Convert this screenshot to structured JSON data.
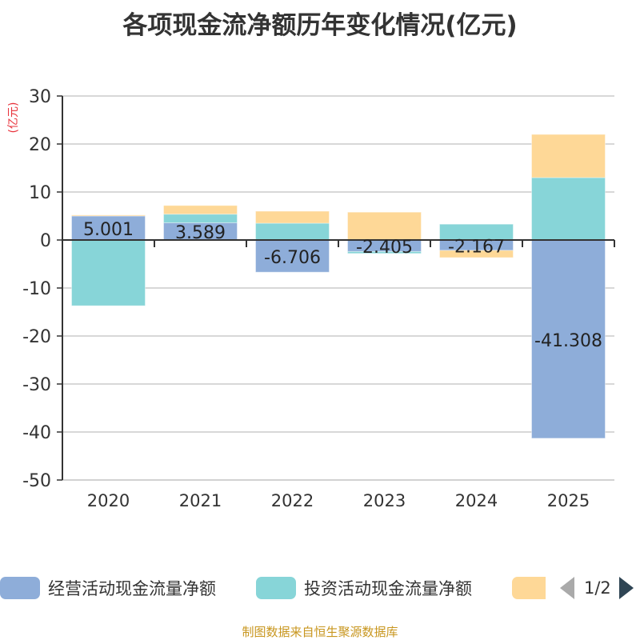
{
  "title": "各项现金流净额历年变化情况(亿元)",
  "source": "制图数据来自恒生聚源数据库",
  "legend": {
    "items": [
      {
        "label": "经营活动现金流量净额",
        "color": "#8eadd9"
      },
      {
        "label": "投资活动现金流量净额",
        "color": "#87d5d8"
      },
      {
        "label": "",
        "color": "#fed897"
      }
    ],
    "page": "1/2",
    "prev_icon": "triangle-left-icon",
    "next_icon": "triangle-right-icon"
  },
  "chart_data": {
    "type": "bar",
    "stacked": true,
    "title": "各项现金流净额历年变化情况(亿元)",
    "ylabel": "(亿元)",
    "xlabel": "",
    "ylim": [
      -50,
      30
    ],
    "yticks": [
      30,
      20,
      10,
      0,
      -10,
      -20,
      -30,
      -40,
      -50
    ],
    "grid": true,
    "legend_position": "bottom",
    "categories": [
      "2020",
      "2021",
      "2022",
      "2023",
      "2024",
      "2025"
    ],
    "series": [
      {
        "name": "经营活动现金流量净额",
        "color": "#8eadd9",
        "values": [
          5.001,
          3.589,
          -6.706,
          -2.405,
          -2.167,
          -41.308
        ],
        "labels": [
          "5.001",
          "3.589",
          "-6.706",
          "-2.405",
          "-2.167",
          "-41.308"
        ]
      },
      {
        "name": "投资活动现金流量净额",
        "color": "#87d5d8",
        "values": [
          -13.7,
          1.8,
          3.5,
          -0.4,
          3.3,
          13.0
        ]
      },
      {
        "name": "",
        "color": "#fed897",
        "values": [
          0.2,
          1.8,
          2.5,
          5.8,
          -1.5,
          9.0
        ]
      }
    ]
  }
}
